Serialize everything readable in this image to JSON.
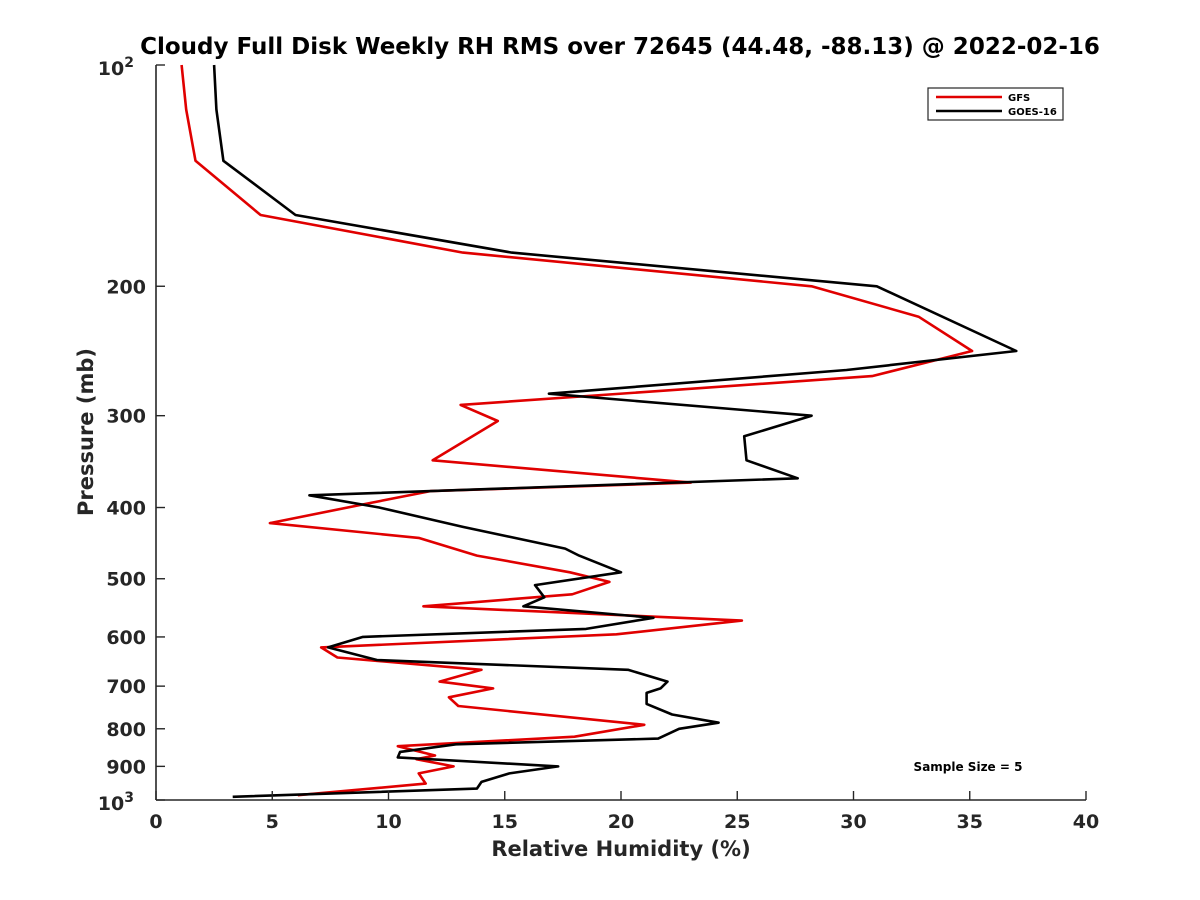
{
  "chart_data": {
    "type": "line",
    "title": "Cloudy Full Disk Weekly RH RMS over 72645 (44.48, -88.13) @ 2022-02-16",
    "xlabel": "Relative Humidity (%)",
    "ylabel": "Pressure (mb)",
    "xlim": [
      0,
      40
    ],
    "ylim": [
      100,
      1000
    ],
    "y_scale": "log",
    "y_reversed": true,
    "x_ticks": [
      0,
      5,
      10,
      15,
      20,
      25,
      30,
      35,
      40
    ],
    "x_tick_labels": [
      "0",
      "5",
      "10",
      "15",
      "20",
      "25",
      "30",
      "35",
      "40"
    ],
    "y_ticks": [
      200,
      300,
      400,
      500,
      600,
      700,
      800,
      900
    ],
    "y_tick_labels": [
      "200",
      "300",
      "400",
      "500",
      "600",
      "700",
      "800",
      "900"
    ],
    "y_end_labels": {
      "top": {
        "base": "10",
        "exp": "2"
      },
      "bottom": {
        "base": "10",
        "exp": "3"
      }
    },
    "grid": false,
    "legend_position": "top-right",
    "series": [
      {
        "name": "GFS",
        "color": "#e00000",
        "points": [
          [
            1.1,
            100
          ],
          [
            1.3,
            115
          ],
          [
            1.7,
            135
          ],
          [
            4.5,
            160
          ],
          [
            13.2,
            180
          ],
          [
            28.2,
            200
          ],
          [
            32.8,
            220
          ],
          [
            35.1,
            245
          ],
          [
            30.8,
            265
          ],
          [
            13.1,
            290
          ],
          [
            14.7,
            305
          ],
          [
            11.9,
            345
          ],
          [
            23.0,
            370
          ],
          [
            11.8,
            380
          ],
          [
            9.1,
            395
          ],
          [
            4.9,
            420
          ],
          [
            11.3,
            440
          ],
          [
            13.8,
            465
          ],
          [
            17.8,
            490
          ],
          [
            19.5,
            505
          ],
          [
            17.9,
            525
          ],
          [
            11.5,
            545
          ],
          [
            25.2,
            570
          ],
          [
            19.8,
            595
          ],
          [
            7.1,
            620
          ],
          [
            7.8,
            640
          ],
          [
            14.0,
            665
          ],
          [
            12.2,
            690
          ],
          [
            14.5,
            705
          ],
          [
            12.6,
            725
          ],
          [
            13.0,
            745
          ],
          [
            21.0,
            790
          ],
          [
            18.0,
            820
          ],
          [
            10.4,
            845
          ],
          [
            12.0,
            870
          ],
          [
            11.2,
            880
          ],
          [
            12.8,
            900
          ],
          [
            11.3,
            920
          ],
          [
            11.6,
            950
          ],
          [
            6.1,
            985
          ]
        ]
      },
      {
        "name": "GOES-16",
        "color": "#000000",
        "points": [
          [
            2.5,
            100
          ],
          [
            2.6,
            115
          ],
          [
            2.9,
            135
          ],
          [
            6.0,
            160
          ],
          [
            15.3,
            180
          ],
          [
            31.0,
            200
          ],
          [
            37.0,
            245
          ],
          [
            29.7,
            260
          ],
          [
            16.9,
            280
          ],
          [
            28.2,
            300
          ],
          [
            25.3,
            320
          ],
          [
            25.4,
            345
          ],
          [
            27.6,
            365
          ],
          [
            6.6,
            385
          ],
          [
            9.6,
            400
          ],
          [
            13.2,
            425
          ],
          [
            17.6,
            455
          ],
          [
            18.2,
            465
          ],
          [
            20.0,
            490
          ],
          [
            16.3,
            510
          ],
          [
            16.7,
            530
          ],
          [
            15.8,
            545
          ],
          [
            21.4,
            565
          ],
          [
            18.5,
            585
          ],
          [
            8.9,
            600
          ],
          [
            7.4,
            620
          ],
          [
            9.5,
            645
          ],
          [
            20.3,
            665
          ],
          [
            22.0,
            690
          ],
          [
            21.7,
            705
          ],
          [
            21.1,
            715
          ],
          [
            21.1,
            740
          ],
          [
            22.2,
            765
          ],
          [
            24.2,
            785
          ],
          [
            22.5,
            800
          ],
          [
            21.6,
            825
          ],
          [
            12.9,
            840
          ],
          [
            10.5,
            860
          ],
          [
            10.4,
            875
          ],
          [
            17.3,
            900
          ],
          [
            15.2,
            920
          ],
          [
            14.0,
            945
          ],
          [
            13.8,
            965
          ],
          [
            3.3,
            990
          ]
        ]
      }
    ],
    "annotations": [
      "Sample Size = 5"
    ]
  }
}
